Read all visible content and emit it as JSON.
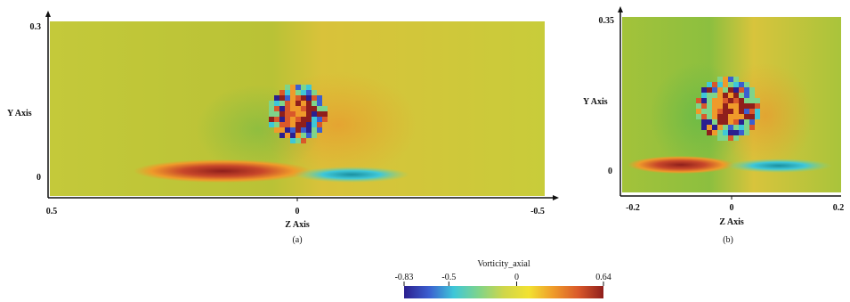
{
  "chart_data": [
    {
      "type": "heatmap",
      "caption": "(a)",
      "xlabel": "Z Axis",
      "ylabel": "Y Axis",
      "x_ticks": [
        "0.5",
        "0",
        "-0.5"
      ],
      "y_ticks": [
        "0.3",
        "0"
      ],
      "xlim": [
        0.5,
        -0.5
      ],
      "ylim": [
        -0.02,
        0.3
      ],
      "field": "Vorticity_axial",
      "features": [
        {
          "name": "vortex core",
          "z": 0.0,
          "y": 0.1,
          "radius": 0.05,
          "min": -0.83,
          "max": 0.64
        },
        {
          "name": "wall band",
          "z": 0.13,
          "y": 0.0,
          "value": 0.64
        },
        {
          "name": "wall band",
          "z": -0.13,
          "y": 0.0,
          "value": -0.5
        }
      ]
    },
    {
      "type": "heatmap",
      "caption": "(b)",
      "xlabel": "Z Axis",
      "ylabel": "Y Axis",
      "x_ticks": [
        "-0.2",
        "0",
        "0.2"
      ],
      "y_ticks": [
        "0.35",
        "0"
      ],
      "xlim": [
        -0.2,
        0.2
      ],
      "ylim": [
        -0.04,
        0.35
      ],
      "field": "Vorticity_axial",
      "features": [
        {
          "name": "vortex core",
          "z": 0.0,
          "y": 0.12,
          "radius": 0.06,
          "min": -0.83,
          "max": 0.64
        },
        {
          "name": "wall band",
          "z": -0.1,
          "y": 0.0,
          "value": 0.64
        },
        {
          "name": "wall band",
          "z": 0.1,
          "y": 0.0,
          "value": -0.5
        }
      ]
    }
  ],
  "colorbar": {
    "title": "Vorticity_axial",
    "min": -0.83,
    "max": 0.64,
    "tick_labels": [
      "-0.83",
      "-0.5",
      "0",
      "0.64"
    ],
    "tick_values": [
      -0.83,
      -0.5,
      0,
      0.64
    ],
    "colors": [
      "#2b1f8f",
      "#3b5fd0",
      "#3fc7d8",
      "#7fd48a",
      "#cfd64a",
      "#f2e232",
      "#ef9a2a",
      "#d9582a",
      "#8f1f1c"
    ]
  }
}
